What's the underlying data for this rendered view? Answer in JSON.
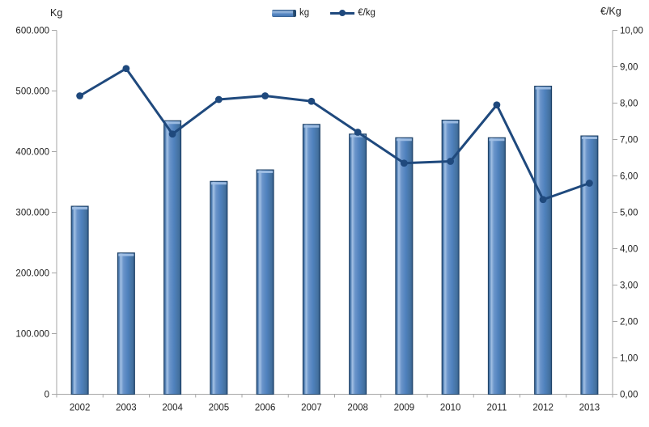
{
  "page": {
    "background": "#ffffff"
  },
  "legend": {
    "position": "top",
    "items": [
      {
        "label": "kg",
        "type": "bar"
      },
      {
        "label": "€/kg",
        "type": "line"
      }
    ]
  },
  "colors": {
    "bar_fill": "#4f81bd",
    "bar_highlight": "#a3c1e5",
    "bar_edge_dark": "#2d5685",
    "bar_stroke": "#1c3f63",
    "line": "#1f497d",
    "axis_line": "#a6a6a6",
    "tick_text": "#1f1f1f"
  },
  "chart_data": {
    "type": "combo_bar_line",
    "title": "",
    "grid": false,
    "legend_position": "top",
    "categories": [
      "2002",
      "2003",
      "2004",
      "2005",
      "2006",
      "2007",
      "2008",
      "2009",
      "2010",
      "2011",
      "2012",
      "2013"
    ],
    "series": [
      {
        "name": "kg",
        "chart": "bar",
        "axis": "left",
        "values": [
          310000,
          233000,
          451000,
          351000,
          370000,
          445000,
          429000,
          423000,
          452000,
          423000,
          508000,
          426000
        ]
      },
      {
        "name": "€/kg",
        "chart": "line",
        "axis": "right",
        "values": [
          8.2,
          8.95,
          7.15,
          8.1,
          8.2,
          8.05,
          7.2,
          6.35,
          6.4,
          7.95,
          5.35,
          5.8
        ]
      }
    ],
    "y_left": {
      "title": "Kg",
      "min": 0,
      "max": 600000,
      "tick_values": [
        0,
        100000,
        200000,
        300000,
        400000,
        500000,
        600000
      ],
      "tick_labels": [
        "0",
        "100.000",
        "200.000",
        "300.000",
        "400.000",
        "500.000",
        "600.000"
      ]
    },
    "y_right": {
      "title": "€/Kg",
      "min": 0,
      "max": 10,
      "tick_values": [
        0,
        1,
        2,
        3,
        4,
        5,
        6,
        7,
        8,
        9,
        10
      ],
      "tick_labels": [
        "0,00",
        "1,00",
        "2,00",
        "3,00",
        "4,00",
        "5,00",
        "6,00",
        "7,00",
        "8,00",
        "9,00",
        "10,00"
      ]
    }
  }
}
